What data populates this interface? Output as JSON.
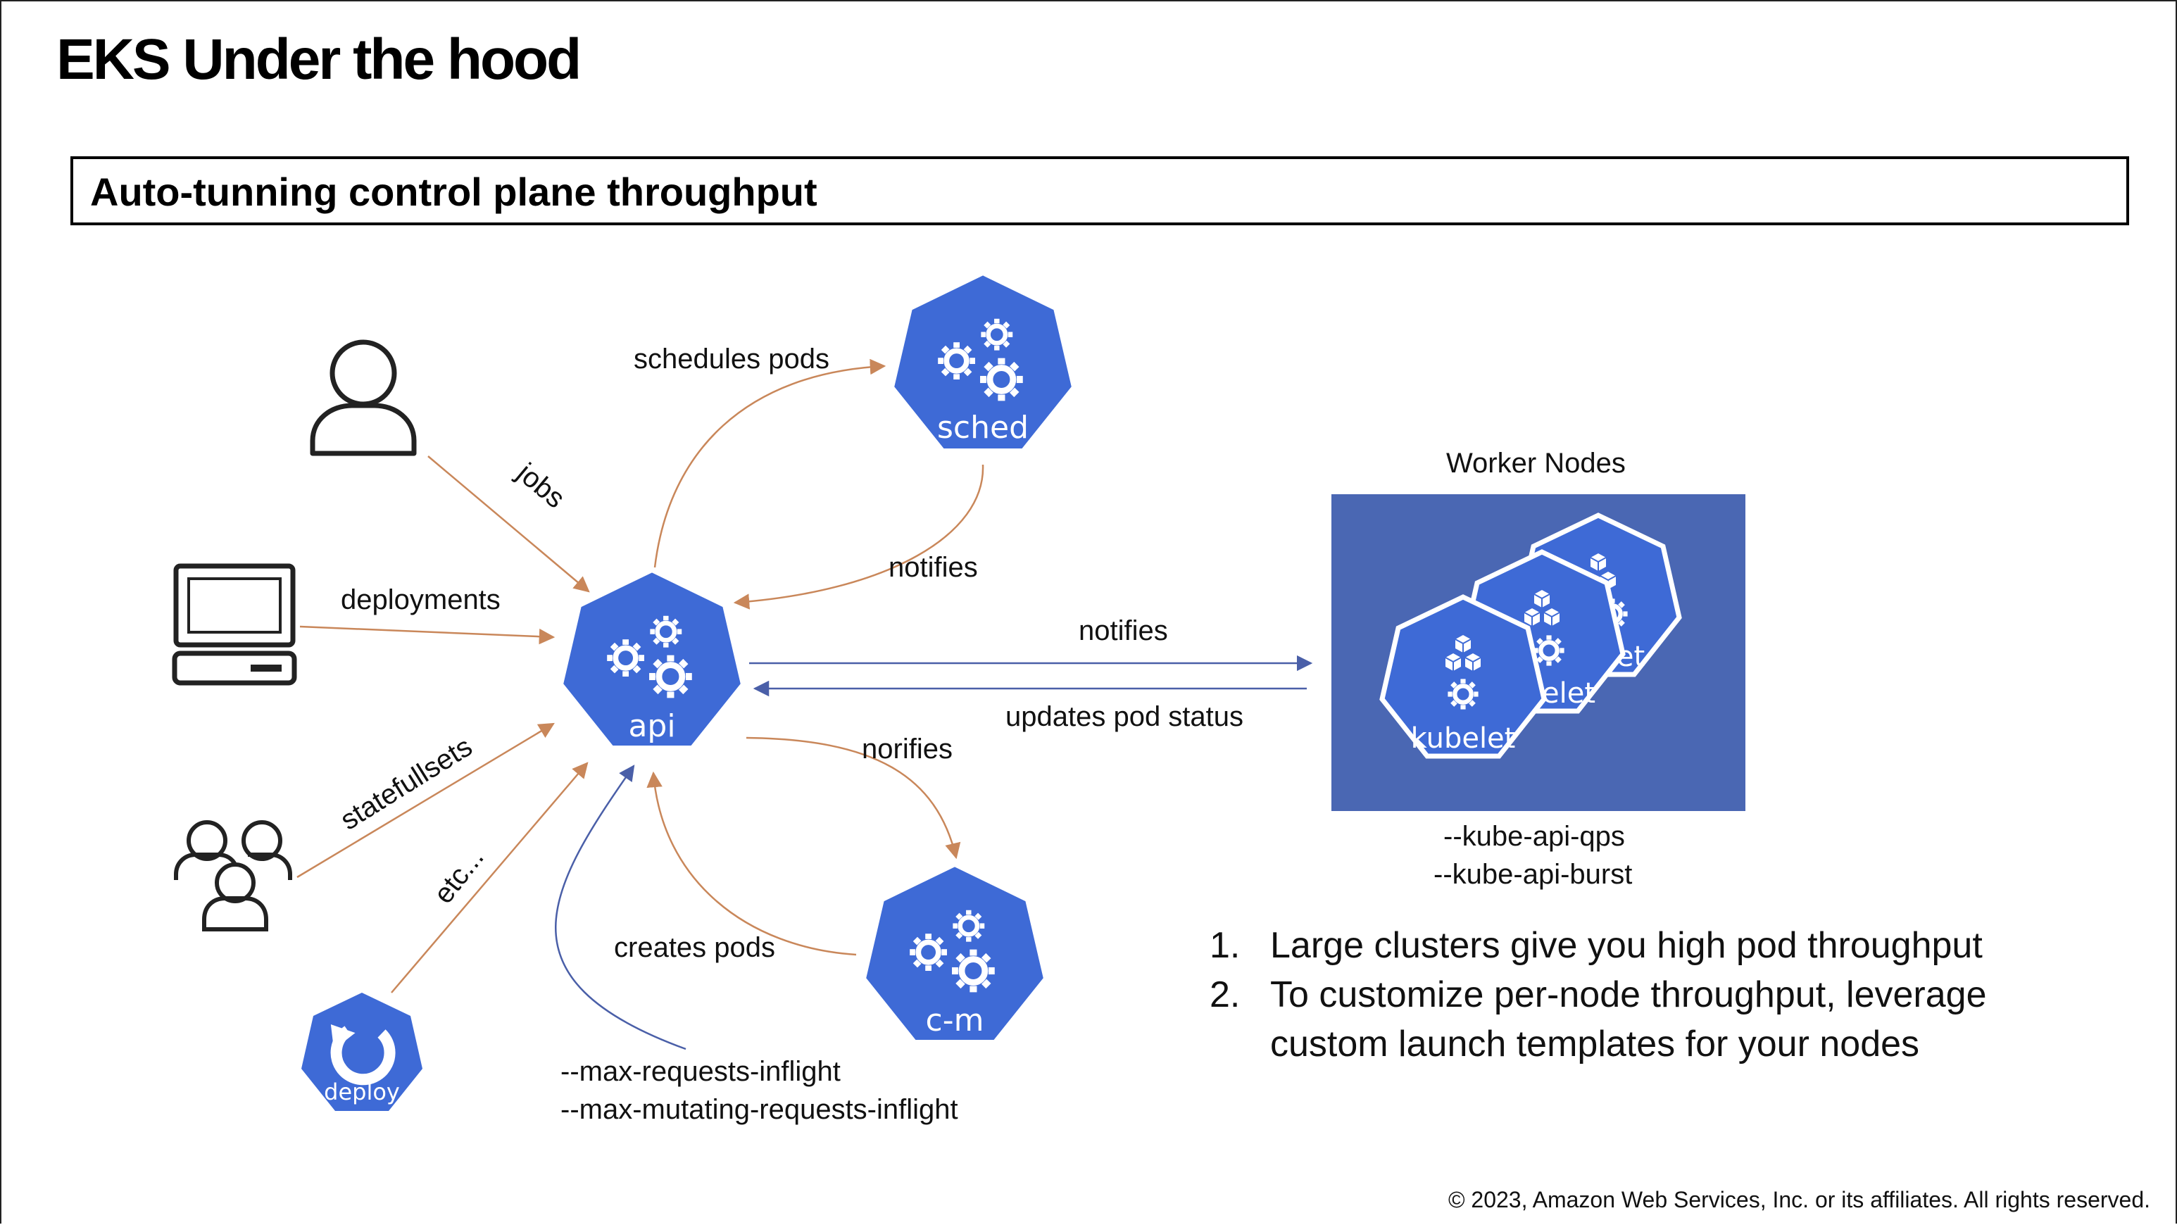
{
  "slide": {
    "title": "EKS Under the hood",
    "subtitle": "Auto-tunning control plane throughput",
    "copyright": "© 2023, Amazon Web Services, Inc. or its affiliates. All rights reserved."
  },
  "components": {
    "api": "api",
    "sched": "sched",
    "cm": "c-m",
    "deploy": "deploy",
    "kubelet_front": "kubelet",
    "kubelet_mid": "elet",
    "kubelet_back": "et"
  },
  "edges": {
    "jobs": "jobs",
    "deployments": "deployments",
    "statefullsets": "statefullsets",
    "etc": "etc...",
    "schedules_pods": "schedules pods",
    "notifies_sched": "notifies",
    "notifies_workers": "notifies",
    "updates_pod_status": "updates pod status",
    "norifies": "norifies",
    "creates_pods": "creates pods"
  },
  "workers": {
    "title": "Worker Nodes",
    "flags": [
      "--kube-api-qps",
      "--kube-api-burst"
    ]
  },
  "api_flags": [
    "--max-requests-inflight",
    "--max-mutating-requests-inflight"
  ],
  "notes": [
    {
      "num": "1.",
      "text": "Large clusters give you high pod throughput"
    },
    {
      "num": "2.",
      "text": "To customize per-node throughput, leverage custom launch templates for your nodes"
    }
  ],
  "colors": {
    "k8s_blue": "#3e6ad6",
    "worker_bg": "#4a67b3",
    "arrow_orange": "#c9875a",
    "arrow_blue": "#4a5fa8"
  }
}
